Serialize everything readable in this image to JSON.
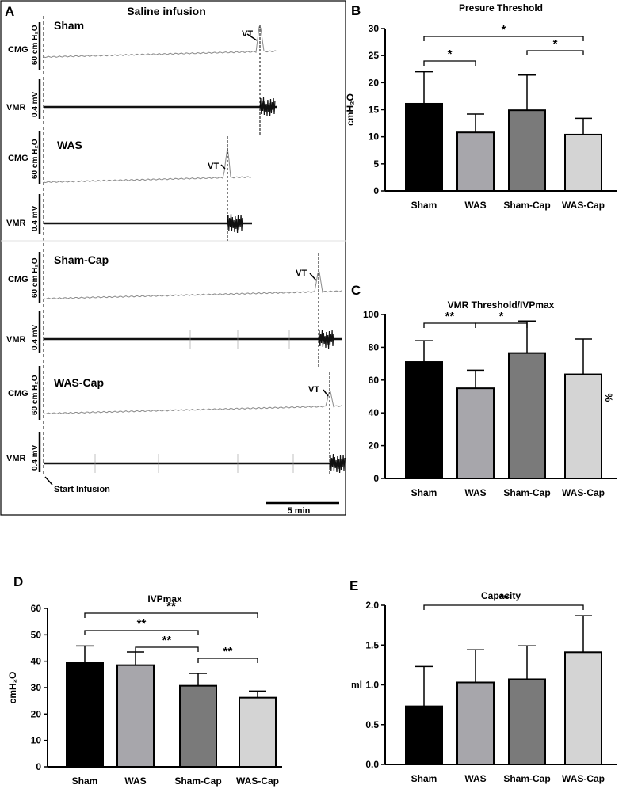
{
  "panel_a": {
    "letter": "A",
    "title": "Saline infusion",
    "cmg_label": "CMG",
    "vmr_label": "VMR",
    "cmg_scale": "60 cm H₂O",
    "vmr_scale": "0.4 mV",
    "vt_label": "VT",
    "start_label": "Start Infusion",
    "scalebar_label": "5 min",
    "groups": [
      {
        "name": "Sham"
      },
      {
        "name": "WAS"
      },
      {
        "name": "Sham-Cap"
      },
      {
        "name": "WAS-Cap"
      }
    ]
  },
  "chart_data": [
    {
      "id": "B",
      "type": "bar",
      "title": "Presure Threshold",
      "ylabel": "cmH₂O",
      "categories": [
        "Sham",
        "WAS",
        "Sham-Cap",
        "WAS-Cap"
      ],
      "values": [
        16.1,
        10.8,
        14.9,
        10.4
      ],
      "errors": [
        5.9,
        3.4,
        6.5,
        3.0
      ],
      "ylim": [
        0,
        30
      ],
      "yticks": [
        0,
        5,
        10,
        15,
        20,
        25,
        30
      ],
      "significance": [
        {
          "from": 0,
          "to": 1,
          "label": "*"
        },
        {
          "from": 2,
          "to": 3,
          "label": "*"
        },
        {
          "from": 0,
          "to": 3,
          "label": "*"
        }
      ]
    },
    {
      "id": "C",
      "type": "bar",
      "title": "VMR Threshold/IVPmax",
      "ylabel": "%",
      "categories": [
        "Sham",
        "WAS",
        "Sham-Cap",
        "WAS-Cap"
      ],
      "values": [
        71,
        55,
        76.5,
        63.5
      ],
      "errors": [
        13,
        11,
        19.5,
        21.5
      ],
      "ylim": [
        0,
        100
      ],
      "yticks": [
        0,
        20,
        40,
        60,
        80,
        100
      ],
      "significance": [
        {
          "from": 0,
          "to": 1,
          "label": "**"
        },
        {
          "from": 1,
          "to": 2,
          "label": "*"
        }
      ]
    },
    {
      "id": "D",
      "type": "bar",
      "title": "IVPmax",
      "ylabel": "cmH₂O",
      "categories": [
        "Sham",
        "WAS",
        "Sham-Cap",
        "WAS-Cap"
      ],
      "values": [
        39.3,
        38.5,
        30.7,
        26.2
      ],
      "errors": [
        6.5,
        5,
        4.7,
        2.5
      ],
      "ylim": [
        0,
        60
      ],
      "yticks": [
        0,
        10,
        20,
        30,
        40,
        50,
        60
      ],
      "significance": [
        {
          "from": 0,
          "to": 3,
          "label": "**"
        },
        {
          "from": 0,
          "to": 2,
          "label": "**"
        },
        {
          "from": 1,
          "to": 2,
          "label": "**"
        },
        {
          "from": 2,
          "to": 3,
          "label": "**"
        }
      ]
    },
    {
      "id": "E",
      "type": "bar",
      "title": "Capacity",
      "ylabel": "ml",
      "categories": [
        "Sham",
        "WAS",
        "Sham-Cap",
        "WAS-Cap"
      ],
      "values": [
        0.73,
        1.03,
        1.07,
        1.41
      ],
      "errors": [
        0.5,
        0.41,
        0.42,
        0.46
      ],
      "ylim": [
        0,
        2
      ],
      "yticks": [
        "0.0",
        "0.5",
        "1.0",
        "1.5",
        "2.0"
      ],
      "significance": [
        {
          "from": 0,
          "to": 3,
          "label": "**"
        }
      ]
    }
  ],
  "colors": {
    "bars": [
      "#000000",
      "#a7a6ab",
      "#7a7a7a",
      "#d4d4d4"
    ],
    "axis": "#000000",
    "cmg_trace": "#8a8a8a",
    "vmr_trace": "#111111"
  }
}
